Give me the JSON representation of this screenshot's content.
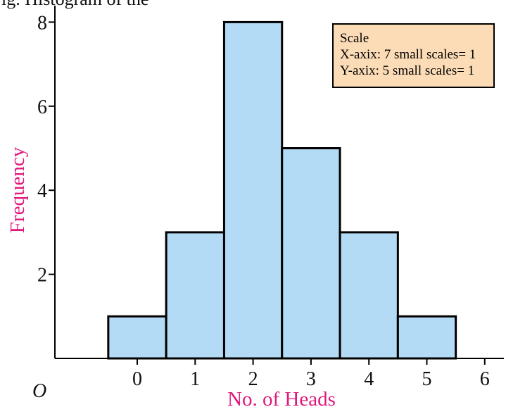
{
  "header_fragment": "ig. Histogram of the",
  "scale_box": {
    "title": "Scale",
    "x_line": "X-axix: 7 small scales= 1",
    "y_line": "Y-axix: 5 small scales= 1",
    "background": "#fcdcb6"
  },
  "chart_data": {
    "type": "bar",
    "categories": [
      "0",
      "1",
      "2",
      "3",
      "4",
      "5"
    ],
    "values": [
      1,
      3,
      8,
      5,
      3,
      1
    ],
    "xlabel": "No. of Heads",
    "ylabel": "Frequency",
    "origin_label": "O",
    "x_ticks": [
      0,
      1,
      2,
      3,
      4,
      5,
      6
    ],
    "y_ticks": [
      2,
      4,
      6,
      8
    ],
    "xlim": [
      -1.5,
      6.2
    ],
    "ylim": [
      0,
      8.6
    ],
    "grid": false,
    "bar_color": "#b3dbf6",
    "label_color": "#e0197c"
  }
}
